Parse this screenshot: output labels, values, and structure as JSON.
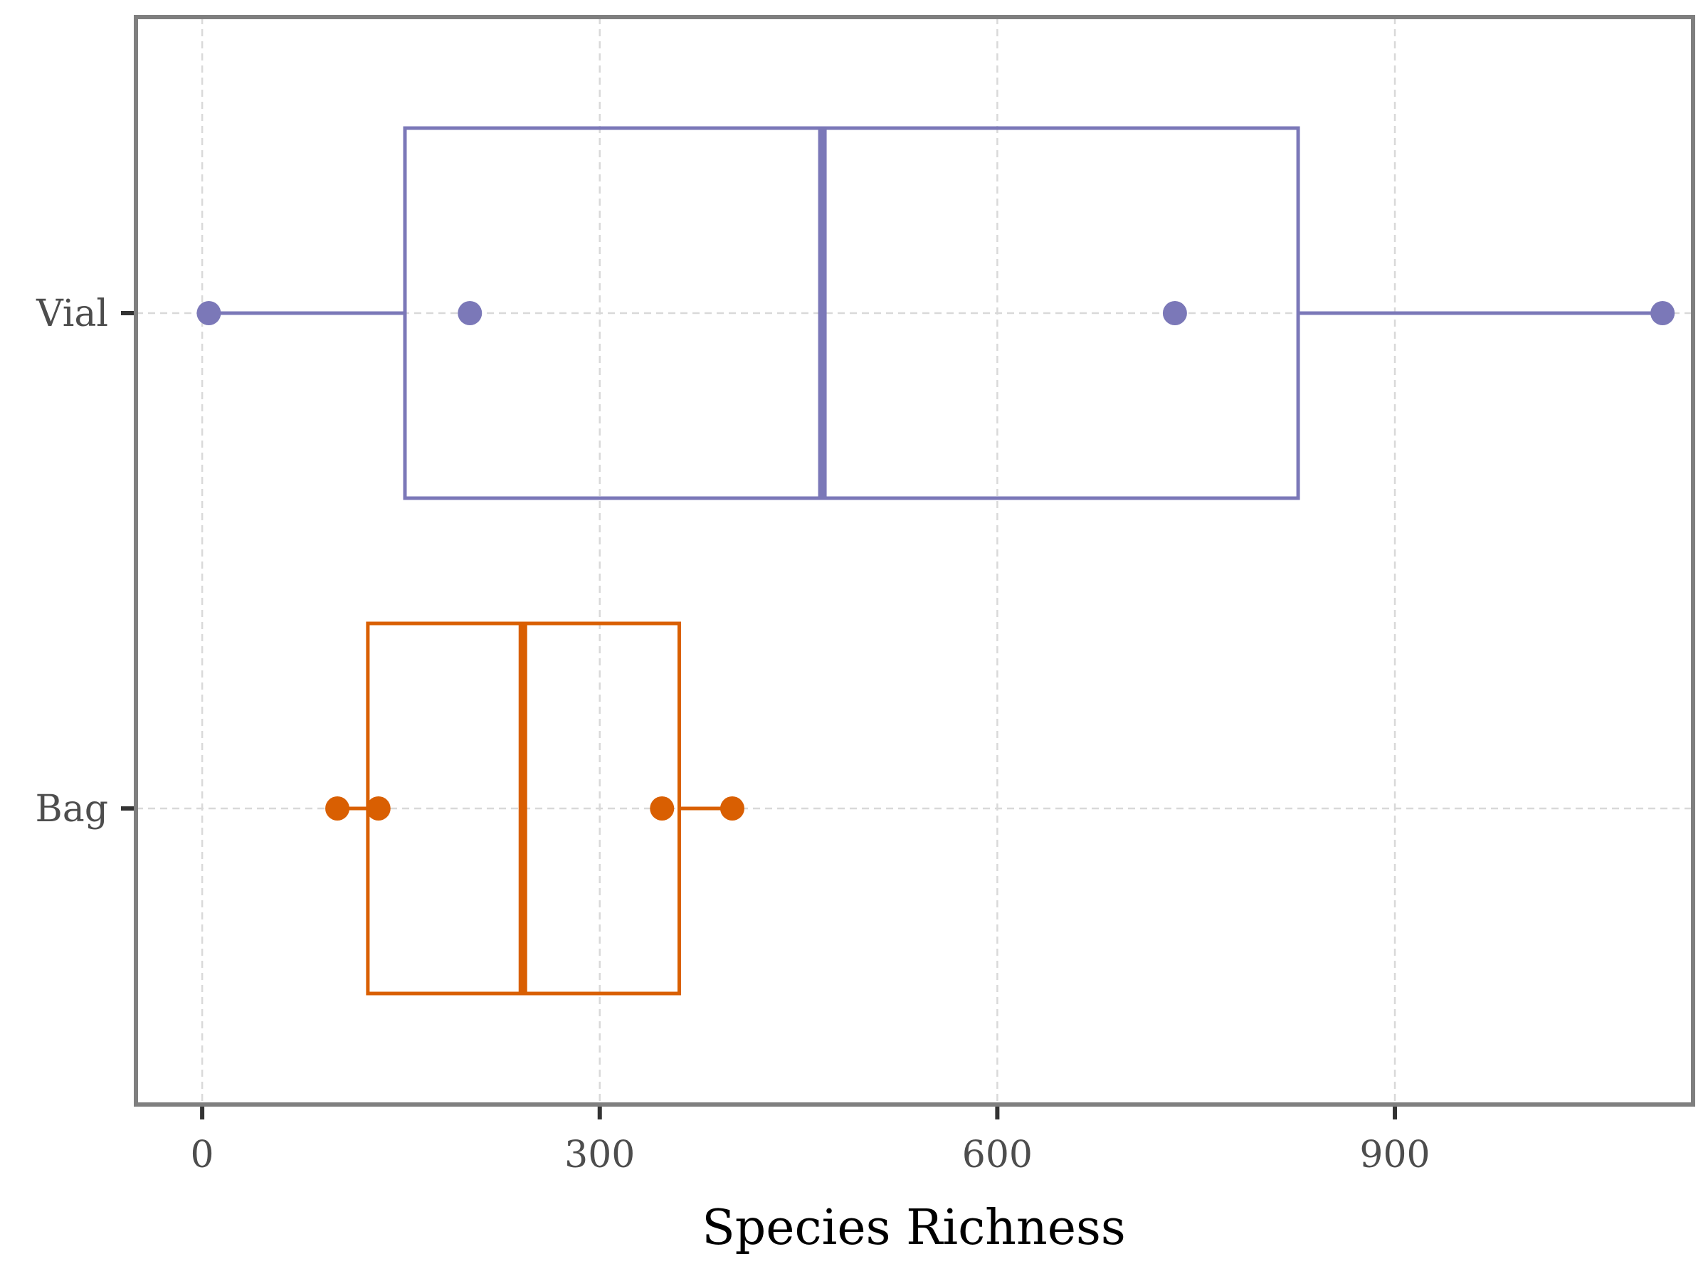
{
  "chart_data": {
    "type": "boxplot",
    "orientation": "horizontal",
    "title": "",
    "xlabel": "Species Richness",
    "ylabel": "",
    "xlim": [
      -50,
      1125
    ],
    "x_ticks": [
      0,
      300,
      600,
      900
    ],
    "x_tick_labels": [
      "0",
      "300",
      "600",
      "900"
    ],
    "grid": true,
    "categories": [
      "Vial",
      "Bag"
    ],
    "series": [
      {
        "name": "Vial",
        "color": "#7b78b8",
        "whisker_low": 5,
        "q1": 153,
        "median": 468,
        "q3": 827,
        "whisker_high": 1102,
        "points": [
          5,
          202,
          734,
          1102
        ]
      },
      {
        "name": "Bag",
        "color": "#d95f02",
        "whisker_low": 102,
        "q1": 125,
        "median": 242,
        "q3": 360,
        "whisker_high": 400,
        "points": [
          102,
          133,
          347,
          400
        ]
      }
    ]
  }
}
